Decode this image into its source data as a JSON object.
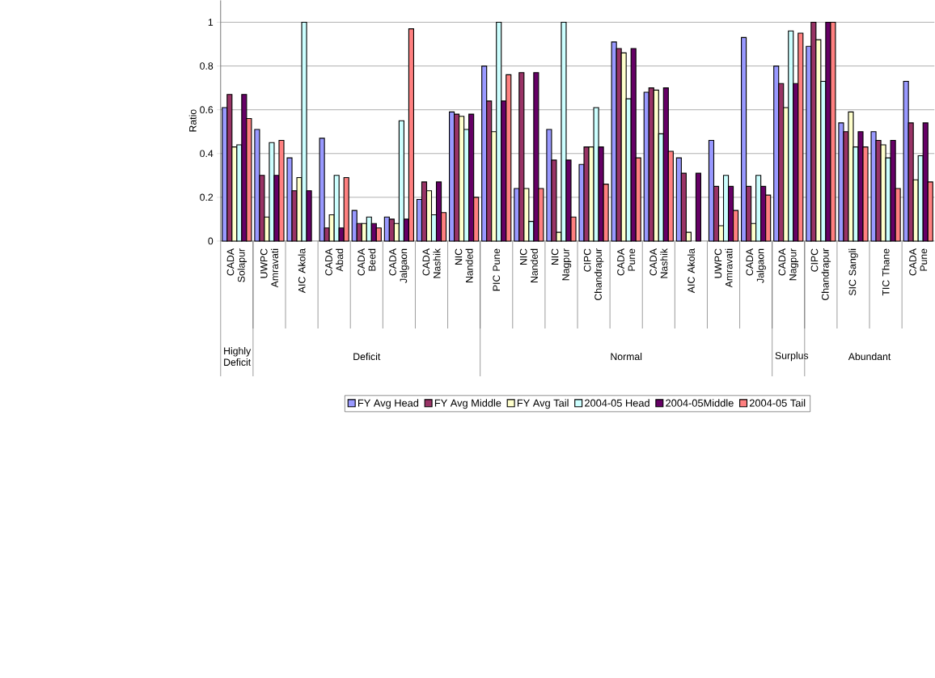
{
  "chart_data": {
    "type": "bar",
    "ylabel": "Ratio",
    "categories": [
      "CADA Solapur",
      "UWPC Amravati",
      "AIC Akola",
      "CADA Abad",
      "CADA Beed",
      "CADA Jalgaon",
      "CADA Nashik",
      "NIC Nanded",
      "PIC Pune",
      "NIC Nanded",
      "NIC Nagpur",
      "CIPC Chandrapur",
      "CADA Pune",
      "CADA Nashik",
      "AIC Akola",
      "UWPC Amravati",
      "CADA Jalgaon",
      "CADA Nagpur",
      "CIPC Chandrapur",
      "SIC Sangli",
      "TIC Thane",
      "CADA Pune"
    ],
    "series": [
      {
        "name": "FY Avg Head",
        "color": "#9999ff",
        "values": [
          0.61,
          0.51,
          0.38,
          0.47,
          0.14,
          0.11,
          0.19,
          0.59,
          0.8,
          0.24,
          0.51,
          0.35,
          0.91,
          0.68,
          0.38,
          0.46,
          0.93,
          0.8,
          0.89,
          0.54,
          0.5,
          0.73
        ]
      },
      {
        "name": "FY Avg Middle",
        "color": "#993366",
        "values": [
          0.67,
          0.3,
          0.23,
          0.06,
          0.08,
          0.1,
          0.27,
          0.58,
          0.64,
          0.77,
          0.37,
          0.43,
          0.88,
          0.7,
          0.31,
          0.25,
          0.25,
          0.72,
          1.0,
          0.5,
          0.46,
          0.54
        ]
      },
      {
        "name": "FY Avg Tail",
        "color": "#ffffcc",
        "values": [
          0.43,
          0.11,
          0.29,
          0.12,
          0.08,
          0.08,
          0.23,
          0.57,
          0.5,
          0.24,
          0.04,
          0.43,
          0.86,
          0.69,
          0.04,
          0.07,
          0.08,
          0.61,
          0.92,
          0.59,
          0.44,
          0.28
        ]
      },
      {
        "name": "2004-05 Head",
        "color": "#ccffff",
        "values": [
          0.44,
          0.45,
          1.0,
          0.3,
          0.11,
          0.55,
          0.12,
          0.51,
          1.0,
          0.09,
          1.0,
          0.61,
          0.65,
          0.49,
          null,
          0.3,
          0.3,
          0.96,
          0.73,
          0.43,
          0.38,
          0.39
        ]
      },
      {
        "name": "2004-05Middle",
        "color": "#660066",
        "values": [
          0.67,
          0.3,
          0.23,
          0.06,
          0.08,
          0.1,
          0.27,
          0.58,
          0.64,
          0.77,
          0.37,
          0.43,
          0.88,
          0.7,
          0.31,
          0.25,
          0.25,
          0.72,
          1.0,
          0.5,
          0.46,
          0.54
        ]
      },
      {
        "name": "2004-05 Tail",
        "color": "#ff8080",
        "values": [
          0.56,
          0.46,
          null,
          0.29,
          0.06,
          0.97,
          0.13,
          0.2,
          0.76,
          0.24,
          0.11,
          0.26,
          0.38,
          0.41,
          null,
          0.14,
          0.21,
          0.95,
          1.0,
          0.43,
          0.24,
          0.27
        ]
      }
    ],
    "annotations": [
      "Highly Deficit",
      "Deficit",
      "Normal",
      "Surplus",
      "Abundant"
    ],
    "ylim": [
      0,
      1.1
    ],
    "yticks": [
      0,
      {
        "value": 0.2,
        "label": "0.2"
      },
      {
        "value": 0.4,
        "label": "0.4"
      },
      {
        "value": 0.6,
        "label": "0.6"
      },
      {
        "value": 0.8,
        "label": "0.8"
      },
      1
    ],
    "grid": "y",
    "legend": "bottom"
  }
}
